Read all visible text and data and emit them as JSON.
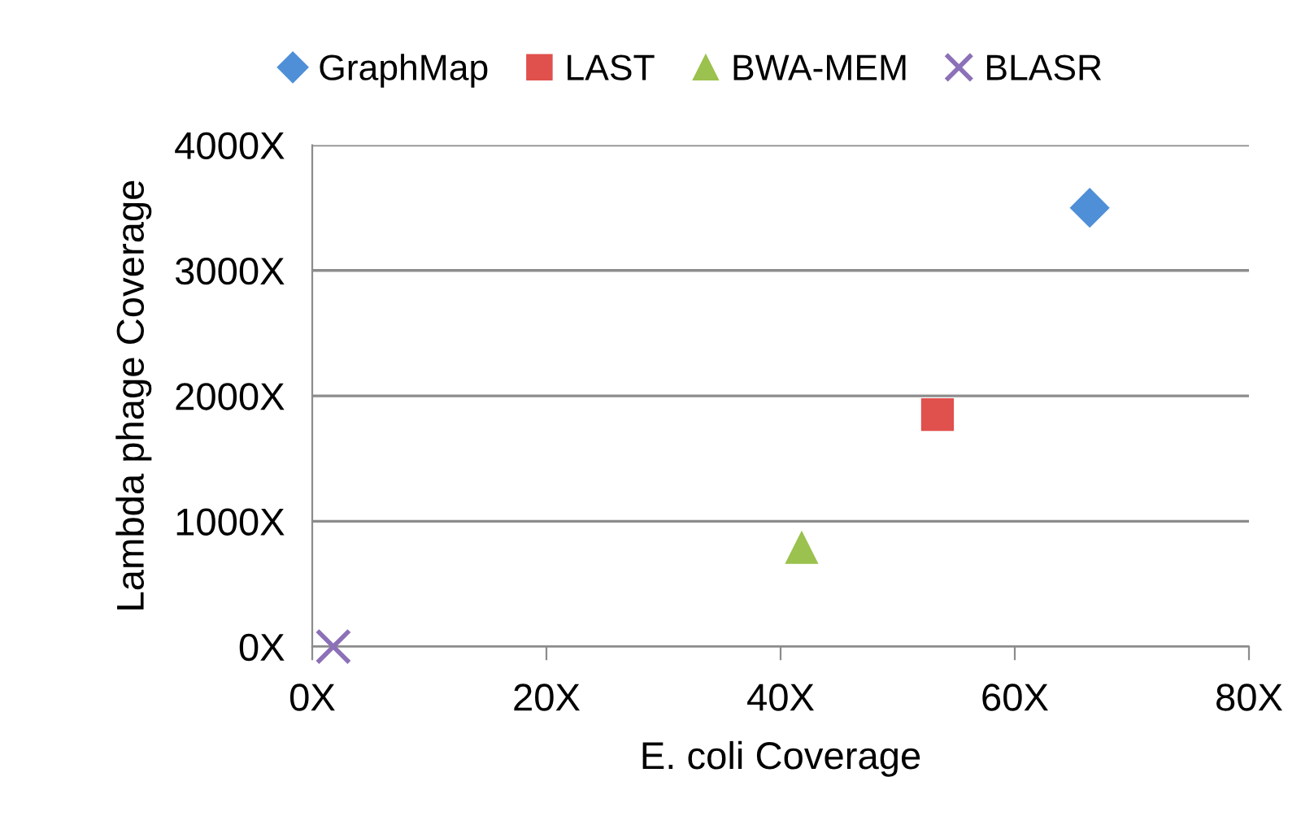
{
  "chart_data": {
    "type": "scatter",
    "xlabel": "E. coli Coverage",
    "ylabel": "Lambda phage Coverage",
    "series": [
      {
        "name": "GraphMap",
        "color": "#4f8fd8",
        "marker": "diamond",
        "x": [
          66.4
        ],
        "values": [
          3500
        ]
      },
      {
        "name": "LAST",
        "color": "#e0504d",
        "marker": "square",
        "x": [
          53.4
        ],
        "values": [
          1850
        ]
      },
      {
        "name": "BWA-MEM",
        "color": "#9bc14e",
        "marker": "triangle",
        "x": [
          41.8
        ],
        "values": [
          790
        ]
      },
      {
        "name": "BLASR",
        "color": "#8c70b8",
        "marker": "cross",
        "x": [
          1.8
        ],
        "values": [
          0
        ]
      }
    ],
    "xlim": [
      0,
      80
    ],
    "ylim": [
      0,
      4000
    ],
    "xticks": [
      {
        "value": 0,
        "label": "0X"
      },
      {
        "value": 20,
        "label": "20X"
      },
      {
        "value": 40,
        "label": "40X"
      },
      {
        "value": 60,
        "label": "60X"
      },
      {
        "value": 80,
        "label": "80X"
      }
    ],
    "yticks": [
      {
        "value": 0,
        "label": "0X"
      },
      {
        "value": 1000,
        "label": "1000X"
      },
      {
        "value": 2000,
        "label": "2000X"
      },
      {
        "value": 3000,
        "label": "3000X"
      },
      {
        "value": 4000,
        "label": "4000X"
      }
    ],
    "grid": "y",
    "legend": "top"
  }
}
